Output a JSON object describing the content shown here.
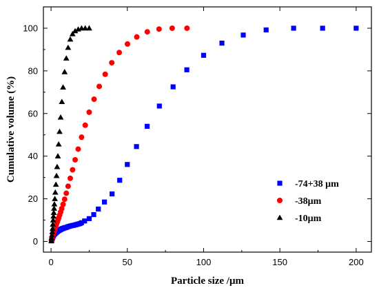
{
  "chart_data": {
    "type": "scatter",
    "xlabel": "Particle size /μm",
    "ylabel": "Cumulative volume (%)",
    "xlim": [
      -5,
      210
    ],
    "ylim": [
      -5,
      110
    ],
    "x_ticks": [
      0,
      50,
      100,
      150,
      200
    ],
    "y_ticks": [
      0,
      20,
      40,
      60,
      80,
      100
    ],
    "grid": false,
    "legend_position": "right-center",
    "series": [
      {
        "name": "-74+38 μm",
        "color": "#0000ff",
        "marker": "square",
        "x": [
          0.3,
          0.5,
          0.7,
          1,
          1.3,
          1.6,
          2,
          2.5,
          3,
          3.5,
          4,
          4.5,
          5,
          5.5,
          6,
          6.5,
          7,
          7.5,
          8,
          8.5,
          9,
          9.5,
          10,
          11,
          12,
          13,
          14,
          15,
          16,
          17,
          18,
          19,
          20,
          22,
          25,
          28,
          31,
          35,
          40,
          45,
          50,
          56,
          63,
          71,
          80,
          89,
          100,
          112,
          126,
          141,
          159,
          178,
          200
        ],
        "y": [
          0.3,
          0.8,
          1.2,
          1.8,
          2.3,
          2.8,
          3.2,
          3.6,
          4,
          4.3,
          4.6,
          4.9,
          5.1,
          5.3,
          5.5,
          5.7,
          5.9,
          6,
          6.1,
          6.3,
          6.4,
          6.5,
          6.6,
          6.9,
          7.1,
          7.3,
          7.5,
          7.6,
          7.8,
          8,
          8.2,
          8.4,
          8.8,
          9.6,
          10.7,
          12.6,
          15.2,
          18.5,
          22.3,
          28.7,
          36.1,
          44.5,
          54,
          63.5,
          72.5,
          80.5,
          87.3,
          93,
          96.8,
          99.2,
          100,
          100,
          100
        ]
      },
      {
        "name": "-38μm",
        "color": "#ff0000",
        "marker": "circle",
        "x": [
          0.3,
          0.6,
          0.9,
          1.2,
          1.5,
          1.8,
          2.2,
          2.6,
          3,
          3.5,
          4,
          4.5,
          5,
          5.6,
          6.3,
          7,
          7.9,
          8.9,
          10,
          11.2,
          12.6,
          14.1,
          15.8,
          17.8,
          20,
          22.4,
          25,
          28.2,
          31.6,
          35.5,
          39.8,
          44.7,
          50.1,
          56.2,
          63.1,
          70.8,
          79.4,
          89.1
        ],
        "y": [
          0.4,
          1.2,
          2,
          2.8,
          3.6,
          4.4,
          5.2,
          6.1,
          7,
          8,
          9,
          10,
          11,
          12.3,
          13.8,
          15.4,
          17.4,
          19.8,
          22.6,
          25.9,
          29.6,
          33.6,
          38.3,
          43.3,
          48.9,
          54.5,
          60.6,
          66.7,
          72.7,
          78.4,
          83.8,
          88.6,
          92.6,
          95.9,
          98.3,
          99.6,
          100,
          100
        ]
      },
      {
        "name": "-10μm",
        "color": "#000000",
        "marker": "triangle",
        "x": [
          0.2,
          0.4,
          0.6,
          0.8,
          1,
          1.2,
          1.4,
          1.6,
          1.8,
          2,
          2.2,
          2.5,
          2.8,
          3.2,
          3.6,
          4,
          4.5,
          5,
          5.6,
          6.3,
          7.1,
          7.9,
          8.9,
          10,
          11.2,
          12.6,
          14.1,
          15.8,
          17.8,
          20,
          22.4,
          25
        ],
        "y": [
          0.3,
          1.5,
          3,
          4.5,
          6,
          8,
          10,
          11.8,
          13.5,
          15.5,
          17.5,
          20,
          23,
          26.7,
          30.8,
          35,
          40,
          45.6,
          51.5,
          58.2,
          65.5,
          72.3,
          79.5,
          85.9,
          90.9,
          94.8,
          97.3,
          98.7,
          99.5,
          100,
          100,
          100
        ]
      }
    ]
  }
}
